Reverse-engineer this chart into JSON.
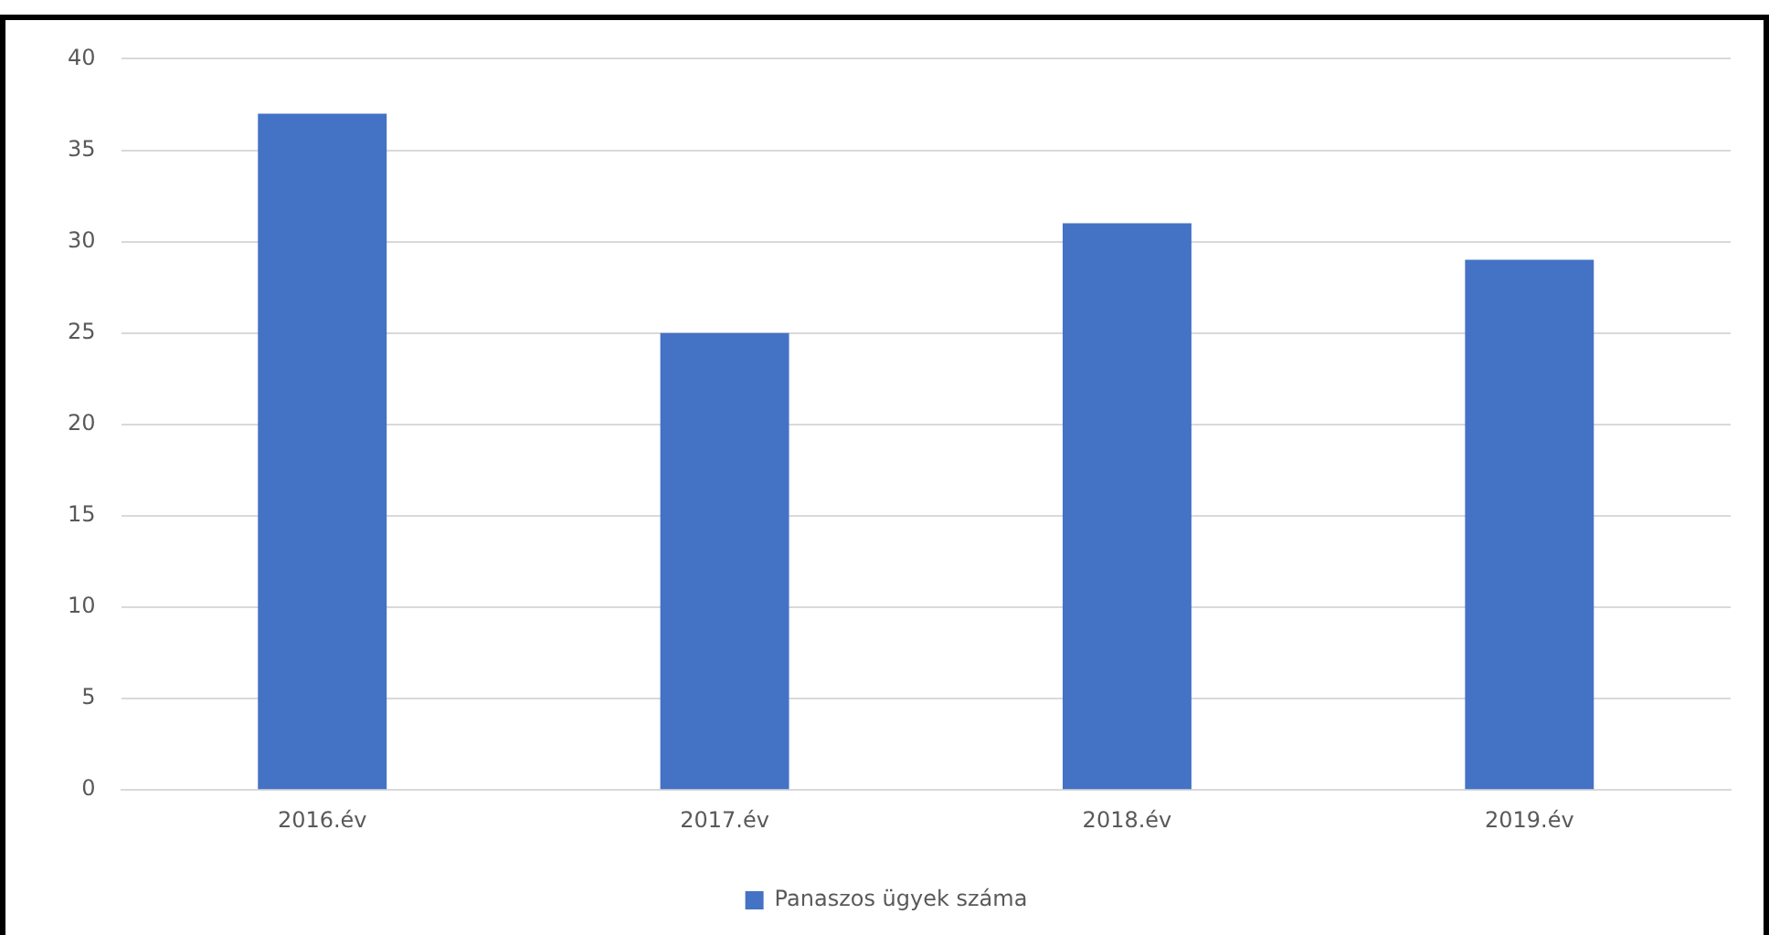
{
  "chart_data": {
    "type": "bar",
    "categories": [
      "2016.év",
      "2017.év",
      "2018.év",
      "2019.év"
    ],
    "series": [
      {
        "name": "Panaszos ügyek száma",
        "color": "#4472c4",
        "values": [
          37,
          25,
          31,
          29
        ]
      }
    ],
    "ylim": [
      0,
      40
    ],
    "yticks": [
      0,
      5,
      10,
      15,
      20,
      25,
      30,
      35,
      40
    ],
    "grid": "y",
    "legend": "bottom"
  }
}
